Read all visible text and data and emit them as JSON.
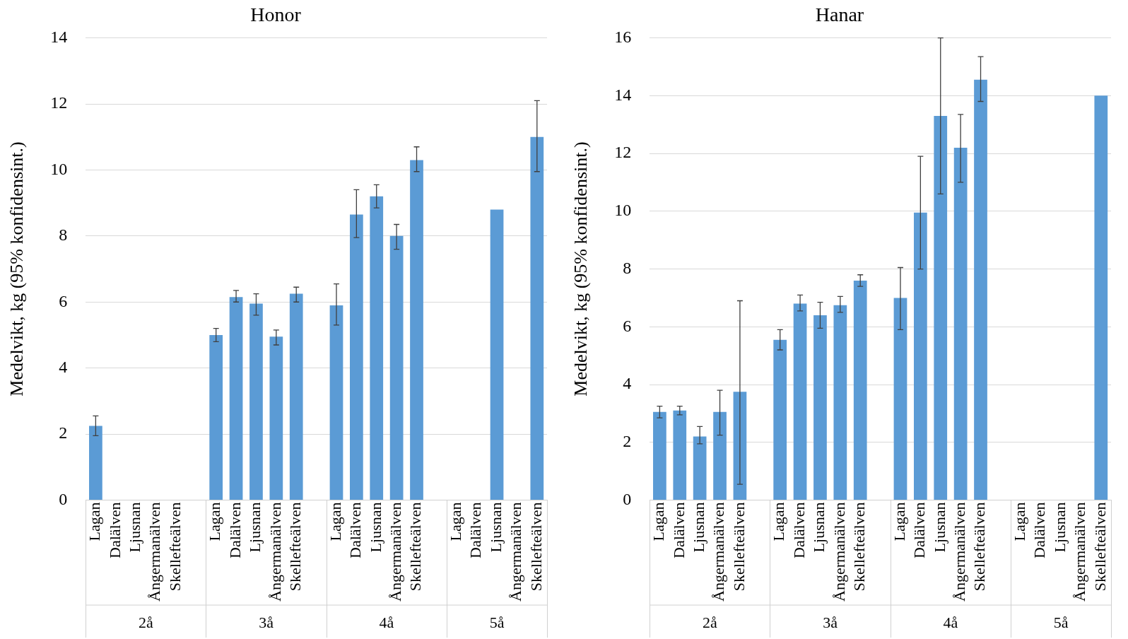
{
  "chart_data": [
    {
      "type": "bar",
      "title": "Honor",
      "ylabel": "Medelvikt, kg (95% konfidensint.)",
      "color": "#5b9bd5",
      "grid": "y",
      "ylim": [
        0,
        14
      ],
      "yticks": [
        0,
        2,
        4,
        6,
        8,
        10,
        12,
        14
      ],
      "categories": [
        "Lagan",
        "Dalälven",
        "Ljusnan",
        "Ångermanälven",
        "Skellefteälven",
        null,
        "Lagan",
        "Dalälven",
        "Ljusnan",
        "Ångermanälven",
        "Skellefteälven",
        null,
        "Lagan",
        "Dalälven",
        "Ljusnan",
        "Ångermanälven",
        "Skellefteälven",
        null,
        "Lagan",
        "Dalälven",
        "Ljusnan",
        "Ångermanälven",
        "Skellefteälven"
      ],
      "values": [
        2.25,
        null,
        null,
        null,
        null,
        null,
        5.0,
        6.15,
        5.95,
        4.95,
        6.25,
        null,
        5.9,
        8.65,
        9.2,
        8.0,
        10.3,
        null,
        null,
        null,
        8.8,
        null,
        11.0
      ],
      "errors": [
        [
          1.95,
          2.55
        ],
        null,
        null,
        null,
        null,
        null,
        [
          4.8,
          5.2
        ],
        [
          6.0,
          6.35
        ],
        [
          5.6,
          6.25
        ],
        [
          4.7,
          5.15
        ],
        [
          6.0,
          6.45
        ],
        null,
        [
          5.3,
          6.55
        ],
        [
          7.95,
          9.4
        ],
        [
          8.85,
          9.55
        ],
        [
          7.6,
          8.35
        ],
        [
          9.95,
          10.7
        ],
        null,
        null,
        null,
        null,
        null,
        [
          9.95,
          12.1
        ]
      ],
      "annotations": [
        "2å",
        "3å",
        "4å",
        "5å"
      ]
    },
    {
      "type": "bar",
      "title": "Hanar",
      "ylabel": "Medelvikt, kg (95% konfidensint.)",
      "color": "#5b9bd5",
      "grid": "y",
      "ylim": [
        0,
        16
      ],
      "yticks": [
        0,
        2,
        4,
        6,
        8,
        10,
        12,
        14,
        16
      ],
      "categories": [
        "Lagan",
        "Dalälven",
        "Ljusnan",
        "Ångermanälven",
        "Skellefteälven",
        null,
        "Lagan",
        "Dalälven",
        "Ljusnan",
        "Ångermanälven",
        "Skellefteälven",
        null,
        "Lagan",
        "Dalälven",
        "Ljusnan",
        "Ångermanälven",
        "Skellefteälven",
        null,
        "Lagan",
        "Dalälven",
        "Ljusnan",
        "Ångermanälven",
        "Skellefteälven"
      ],
      "values": [
        3.05,
        3.1,
        2.2,
        3.05,
        3.75,
        null,
        5.55,
        6.8,
        6.4,
        6.75,
        7.6,
        null,
        7.0,
        9.95,
        13.3,
        12.2,
        14.55,
        null,
        null,
        null,
        null,
        null,
        14.0
      ],
      "errors": [
        [
          2.85,
          3.25
        ],
        [
          2.95,
          3.25
        ],
        [
          1.95,
          2.55
        ],
        [
          2.25,
          3.8
        ],
        [
          0.55,
          6.9
        ],
        null,
        [
          5.2,
          5.9
        ],
        [
          6.55,
          7.1
        ],
        [
          5.95,
          6.85
        ],
        [
          6.5,
          7.05
        ],
        [
          7.4,
          7.8
        ],
        null,
        [
          5.9,
          8.05
        ],
        [
          8.0,
          11.9
        ],
        [
          10.6,
          16.0
        ],
        [
          11.0,
          13.35
        ],
        [
          13.8,
          15.35
        ],
        null,
        null,
        null,
        null,
        null,
        null
      ],
      "annotations": [
        "2å",
        "3å",
        "4å",
        "5å"
      ]
    }
  ]
}
